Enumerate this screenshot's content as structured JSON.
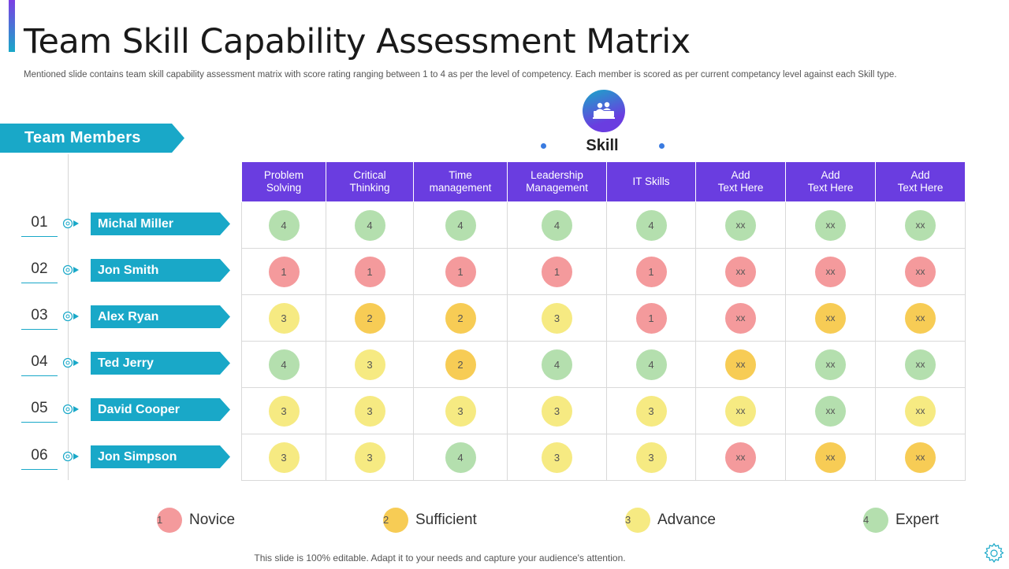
{
  "title": "Team Skill Capability Assessment Matrix",
  "subtitle": "Mentioned slide contains team skill capability assessment matrix with score rating ranging between 1 to 4 as per the level of competency. Each member is scored as per current competancy level against each Skill type.",
  "team_members_label": "Team Members",
  "skill_label": "Skill",
  "skill_icon": "team-presentation-icon",
  "colors": {
    "accent_teal": "#19a8c8",
    "accent_purple": "#6a3de0",
    "novice": "#f49a9c",
    "sufficient": "#f7cc55",
    "advance": "#f6ea82",
    "expert": "#b4dfae"
  },
  "skills": [
    {
      "line1": "Problem",
      "line2": "Solving"
    },
    {
      "line1": "Critical",
      "line2": "Thinking"
    },
    {
      "line1": "Time",
      "line2": "management"
    },
    {
      "line1": "Leadership",
      "line2": "Management"
    },
    {
      "line1": "IT Skills",
      "line2": ""
    },
    {
      "line1": "Add",
      "line2": "Text Here"
    },
    {
      "line1": "Add",
      "line2": "Text Here"
    },
    {
      "line1": "Add",
      "line2": "Text Here"
    }
  ],
  "members": [
    {
      "num": "01",
      "name": "Michal Miller",
      "scores": [
        [
          "4",
          4
        ],
        [
          "4",
          4
        ],
        [
          "4",
          4
        ],
        [
          "4",
          4
        ],
        [
          "4",
          4
        ],
        [
          "xx",
          4
        ],
        [
          "xx",
          4
        ],
        [
          "xx",
          4
        ]
      ]
    },
    {
      "num": "02",
      "name": "Jon Smith",
      "scores": [
        [
          "1",
          1
        ],
        [
          "1",
          1
        ],
        [
          "1",
          1
        ],
        [
          "1",
          1
        ],
        [
          "1",
          1
        ],
        [
          "xx",
          1
        ],
        [
          "xx",
          1
        ],
        [
          "xx",
          1
        ]
      ]
    },
    {
      "num": "03",
      "name": "Alex Ryan",
      "scores": [
        [
          "3",
          3
        ],
        [
          "2",
          2
        ],
        [
          "2",
          2
        ],
        [
          "3",
          3
        ],
        [
          "1",
          1
        ],
        [
          "xx",
          1
        ],
        [
          "xx",
          2
        ],
        [
          "xx",
          2
        ]
      ]
    },
    {
      "num": "04",
      "name": "Ted Jerry",
      "scores": [
        [
          "4",
          4
        ],
        [
          "3",
          3
        ],
        [
          "2",
          2
        ],
        [
          "4",
          4
        ],
        [
          "4",
          4
        ],
        [
          "xx",
          2
        ],
        [
          "xx",
          4
        ],
        [
          "xx",
          4
        ]
      ]
    },
    {
      "num": "05",
      "name": "David Cooper",
      "scores": [
        [
          "3",
          3
        ],
        [
          "3",
          3
        ],
        [
          "3",
          3
        ],
        [
          "3",
          3
        ],
        [
          "3",
          3
        ],
        [
          "xx",
          3
        ],
        [
          "xx",
          4
        ],
        [
          "xx",
          3
        ]
      ]
    },
    {
      "num": "06",
      "name": "Jon Simpson",
      "scores": [
        [
          "3",
          3
        ],
        [
          "3",
          3
        ],
        [
          "4",
          4
        ],
        [
          "3",
          3
        ],
        [
          "3",
          3
        ],
        [
          "xx",
          1
        ],
        [
          "xx",
          2
        ],
        [
          "xx",
          2
        ]
      ]
    }
  ],
  "legend": [
    {
      "value": "1",
      "label": "Novice",
      "level": 1
    },
    {
      "value": "2",
      "label": "Sufficient",
      "level": 2
    },
    {
      "value": "3",
      "label": "Advance",
      "level": 3
    },
    {
      "value": "4",
      "label": "Expert",
      "level": 4
    }
  ],
  "footer": "This slide is 100% editable. Adapt it to your needs and capture your audience's attention."
}
